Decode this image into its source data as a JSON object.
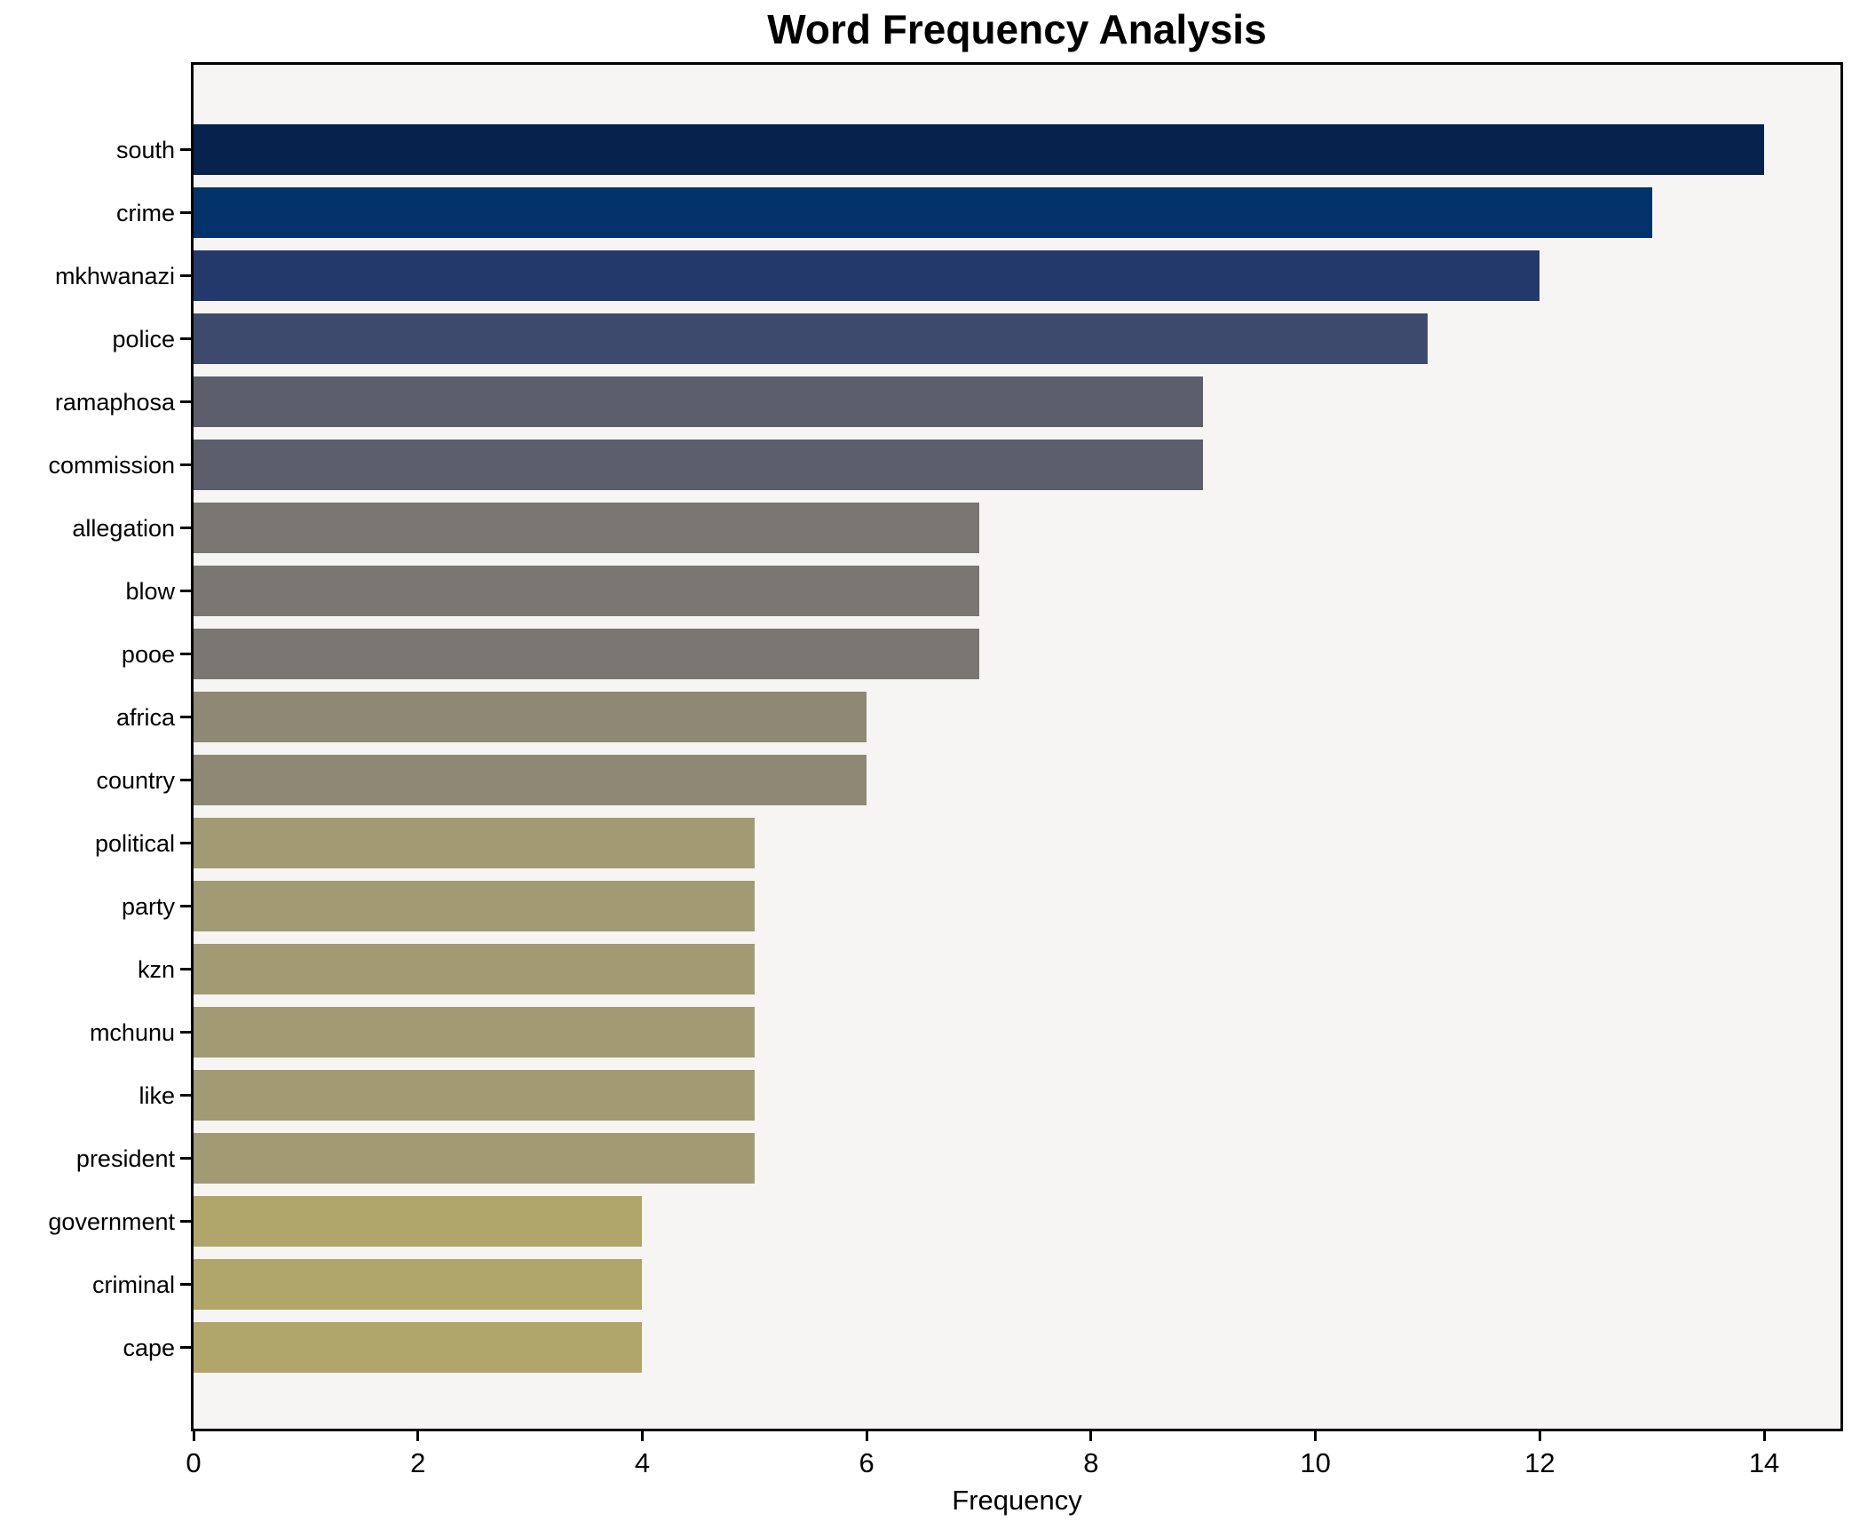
{
  "title": "Word Frequency Analysis",
  "chart_data": {
    "type": "bar",
    "orientation": "horizontal",
    "title": "Word Frequency Analysis",
    "xlabel": "Frequency",
    "ylabel": "",
    "categories": [
      "south",
      "crime",
      "mkhwanazi",
      "police",
      "ramaphosa",
      "commission",
      "allegation",
      "blow",
      "pooe",
      "africa",
      "country",
      "political",
      "party",
      "kzn",
      "mchunu",
      "like",
      "president",
      "government",
      "criminal",
      "cape"
    ],
    "values": [
      14,
      13,
      12,
      11,
      9,
      9,
      7,
      7,
      7,
      6,
      6,
      5,
      5,
      5,
      5,
      5,
      5,
      4,
      4,
      4
    ],
    "bar_colors": [
      "#06224d",
      "#033169",
      "#24396b",
      "#3e4a6d",
      "#5c5f6b",
      "#5c5f6b",
      "#7a7671",
      "#7a7671",
      "#7a7671",
      "#8e8975",
      "#8e8975",
      "#a29a73",
      "#a29a73",
      "#a29a73",
      "#a29a73",
      "#a29a73",
      "#a29a73",
      "#b1a66a",
      "#b1a66a",
      "#b1a66a"
    ],
    "xlim": [
      0,
      14.68
    ],
    "xticks": [
      0,
      2,
      4,
      6,
      8,
      10,
      12,
      14
    ],
    "grid": false,
    "legend": "none",
    "plot_background": "#f6f5f4",
    "figure_background": "#ffffff",
    "spine_color": "#000000"
  }
}
